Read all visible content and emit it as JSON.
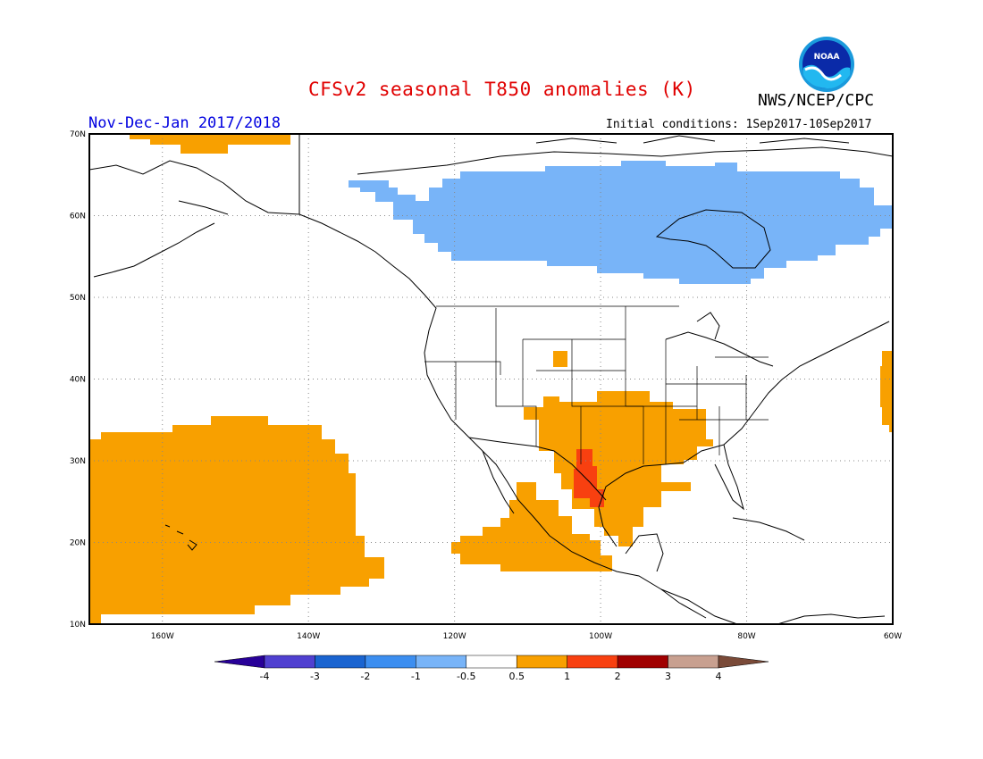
{
  "header": {
    "title": "CFSv2 seasonal T850 anomalies (K)",
    "agency": "NWS/NCEP/CPC",
    "season": "Nov-Dec-Jan 2017/2018",
    "initial_conditions": "Initial conditions: 1Sep2017-10Sep2017",
    "logo_text": "NOAA"
  },
  "map": {
    "lon_labels": [
      "160W",
      "140W",
      "120W",
      "100W",
      "80W",
      "60W"
    ],
    "lat_labels": [
      "70N",
      "60N",
      "50N",
      "40N",
      "30N",
      "20N",
      "10N"
    ],
    "lon_values": [
      -160,
      -140,
      -120,
      -100,
      -80,
      -60
    ],
    "lat_values": [
      70,
      60,
      50,
      40,
      30,
      20,
      10
    ],
    "grid_lines": true,
    "anomaly_regions": [
      {
        "name": "canada-negative-anomaly",
        "level": "-1 to -0.5",
        "color": "#78b4f8"
      },
      {
        "name": "pacific-positive-anomaly",
        "level": "0.5 to 1",
        "color": "#f8a000"
      },
      {
        "name": "southern-us-positive-anomaly",
        "level": "0.5 to 1",
        "color": "#f8a000"
      },
      {
        "name": "texas-strong-positive-anomaly",
        "level": "1 to 2",
        "color": "#f84010"
      },
      {
        "name": "mexico-positive-anomaly",
        "level": "0.5 to 1",
        "color": "#f8a000"
      },
      {
        "name": "atlantic-positive-anomaly",
        "level": "0.5 to 1",
        "color": "#f8a000"
      },
      {
        "name": "arctic-positive-anomaly",
        "level": "0.5 to 1",
        "color": "#f8a000"
      },
      {
        "name": "colorado-positive-anomaly",
        "level": "0.5 to 1",
        "color": "#f8a000"
      }
    ]
  },
  "colorbar": {
    "labels": [
      "-4",
      "-3",
      "-2",
      "-1",
      "-0.5",
      "0.5",
      "1",
      "2",
      "3",
      "4"
    ],
    "colors": [
      "#280098",
      "#5040d0",
      "#1a64d0",
      "#3c8ef0",
      "#78b4f8",
      "#ffffff",
      "#f8a000",
      "#f84010",
      "#a00000",
      "#c8a090",
      "#7a4a38"
    ]
  }
}
